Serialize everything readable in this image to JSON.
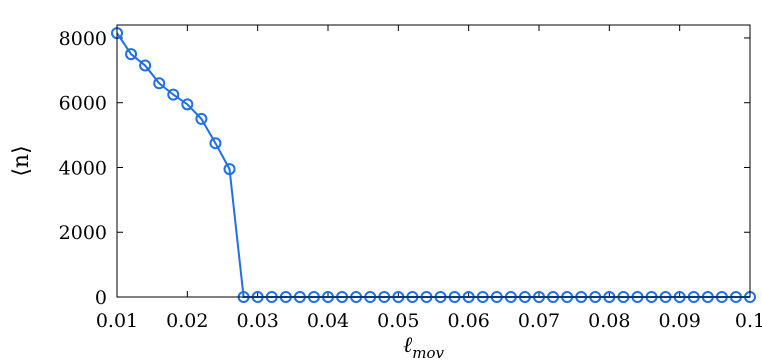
{
  "chart_data": {
    "type": "line",
    "xlabel": "ℓ",
    "xlabel_subscript": "mov",
    "ylabel": "⟨n⟩",
    "xlim": [
      0.01,
      0.1
    ],
    "ylim": [
      0,
      8400
    ],
    "x_ticks": [
      0.01,
      0.02,
      0.03,
      0.04,
      0.05,
      0.06,
      0.07,
      0.08,
      0.09,
      0.1
    ],
    "x_tick_labels": [
      "0.01",
      "0.02",
      "0.03",
      "0.04",
      "0.05",
      "0.06",
      "0.07",
      "0.08",
      "0.09",
      "0.1"
    ],
    "y_ticks": [
      0,
      2000,
      4000,
      6000,
      8000
    ],
    "y_tick_labels": [
      "0",
      "2000",
      "4000",
      "6000",
      "8000"
    ],
    "grid": false,
    "series": [
      {
        "color": "#1f6fe8",
        "marker": "circle-open",
        "x": [
          0.01,
          0.012,
          0.014,
          0.016,
          0.018,
          0.02,
          0.022,
          0.024,
          0.026,
          0.028,
          0.03,
          0.032,
          0.034,
          0.036,
          0.038,
          0.04,
          0.042,
          0.044,
          0.046,
          0.048,
          0.05,
          0.052,
          0.054,
          0.056,
          0.058,
          0.06,
          0.062,
          0.064,
          0.066,
          0.068,
          0.07,
          0.072,
          0.074,
          0.076,
          0.078,
          0.08,
          0.082,
          0.084,
          0.086,
          0.088,
          0.09,
          0.092,
          0.094,
          0.096,
          0.098,
          0.1
        ],
        "y": [
          8150,
          7500,
          7150,
          6600,
          6250,
          5950,
          5500,
          4750,
          3950,
          0,
          0,
          0,
          0,
          0,
          0,
          0,
          0,
          0,
          0,
          0,
          0,
          0,
          0,
          0,
          0,
          0,
          0,
          0,
          0,
          0,
          0,
          0,
          0,
          0,
          0,
          0,
          0,
          0,
          0,
          0,
          0,
          0,
          0,
          0,
          0,
          0
        ]
      }
    ]
  }
}
